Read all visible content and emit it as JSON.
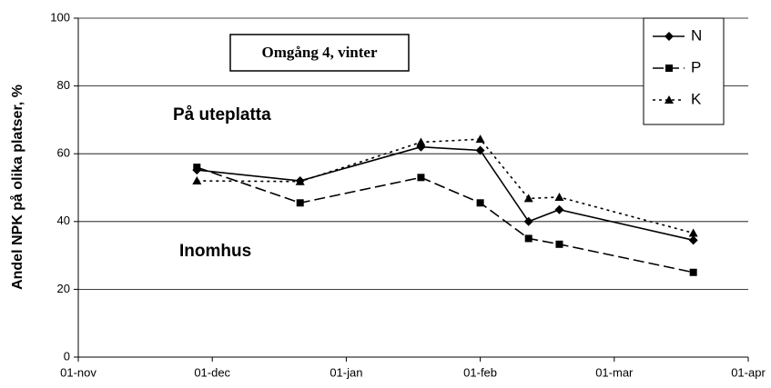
{
  "chart_data": {
    "type": "line",
    "title": "Omgång 4, vinter",
    "y_label": "Andel NPK på olika platser, %",
    "annotations": [
      "På uteplatta",
      "Inomhus"
    ],
    "x": [
      "28-nov",
      "21-dec",
      "18-jan",
      "01-feb",
      "12-feb",
      "19-feb",
      "19-mar"
    ],
    "xlim": [
      "01-nov",
      "01-apr"
    ],
    "xticks": [
      "01-nov",
      "01-dec",
      "01-jan",
      "01-feb",
      "01-mar",
      "01-apr"
    ],
    "ylim": [
      0,
      100
    ],
    "yticks": [
      0,
      20,
      40,
      60,
      80,
      100
    ],
    "grid": true,
    "legend": "top-right",
    "series": [
      {
        "name": "N",
        "color": "#000000",
        "marker": "diamond",
        "linestyle": "solid",
        "values": [
          55.2,
          52,
          62,
          61,
          40,
          43.5,
          34.5
        ]
      },
      {
        "name": "P",
        "color": "#000000",
        "marker": "square",
        "linestyle": "dashed",
        "values": [
          56,
          45.5,
          53,
          45.5,
          35,
          33.3,
          25
        ]
      },
      {
        "name": "K",
        "color": "#000000",
        "marker": "triangle",
        "linestyle": "dotted",
        "values": [
          52,
          51.8,
          63.4,
          64.3,
          46.8,
          47.2,
          36.6
        ]
      }
    ]
  }
}
